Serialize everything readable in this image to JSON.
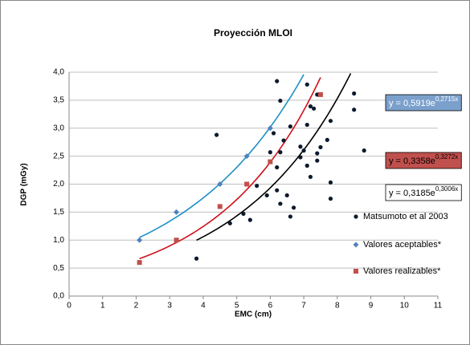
{
  "chart_data": {
    "type": "scatter",
    "title": "Proyección MLOI",
    "x_label": "EMC (cm)",
    "y_label": "DGP  (mGy)",
    "xlim": [
      0,
      11
    ],
    "xticks": [
      0,
      1,
      2,
      3,
      4,
      5,
      6,
      7,
      8,
      9,
      10,
      11
    ],
    "ylim": [
      0,
      4
    ],
    "yticks": [
      {
        "value": 0,
        "label": "0,0"
      },
      {
        "value": 0.5,
        "label": "0,5"
      },
      {
        "value": 1,
        "label": "1,0"
      },
      {
        "value": 1.5,
        "label": "1,5"
      },
      {
        "value": 2,
        "label": "2,0"
      },
      {
        "value": 2.5,
        "label": "2,5"
      },
      {
        "value": 3,
        "label": "3,0"
      },
      {
        "value": 3.5,
        "label": "3,5"
      },
      {
        "value": 4,
        "label": "4,0"
      }
    ],
    "grid": true,
    "series": [
      {
        "name": "Matsumoto et al 2003",
        "color": "#0d1a2e",
        "marker": "circle",
        "x": [
          3.8,
          4.4,
          4.8,
          5.2,
          5.4,
          5.6,
          5.9,
          6.0,
          6.1,
          6.2,
          6.2,
          6.2,
          6.3,
          6.3,
          6.3,
          6.4,
          6.5,
          6.6,
          6.6,
          6.7,
          6.9,
          6.9,
          7.0,
          7.1,
          7.1,
          7.1,
          7.2,
          7.2,
          7.3,
          7.4,
          7.4,
          7.5,
          7.7,
          7.8,
          7.8,
          7.8,
          8.5,
          8.5,
          8.8,
          7.4
        ],
        "values": [
          0.67,
          2.88,
          1.3,
          1.47,
          1.36,
          1.97,
          1.8,
          2.57,
          2.91,
          3.84,
          1.89,
          2.3,
          3.49,
          2.57,
          1.65,
          2.78,
          1.8,
          3.03,
          1.42,
          1.58,
          2.67,
          2.48,
          2.6,
          3.78,
          3.06,
          2.33,
          3.39,
          2.13,
          3.35,
          2.42,
          2.55,
          2.66,
          2.79,
          3.13,
          2.03,
          1.74,
          3.62,
          3.33,
          2.6,
          3.6
        ],
        "trendline": {
          "color": "#000000",
          "coef": 0.3185,
          "rate": 0.3006,
          "x_range": [
            3.8,
            8.4
          ],
          "label_base": "y = 0,3185e",
          "label_exp": "0,3006x",
          "label_fill": "#ffffff",
          "label_text_color": "#000000"
        }
      },
      {
        "name": "Valores aceptables*",
        "color": "#4f81bd",
        "marker": "diamond",
        "x": [
          2.1,
          3.2,
          4.5,
          5.3,
          6.0
        ],
        "values": [
          1.0,
          1.5,
          2.0,
          2.5,
          3.0
        ],
        "trendline": {
          "color": "#1f8fc8",
          "coef": 0.5919,
          "rate": 0.2715,
          "x_range": [
            2.1,
            7.0
          ],
          "label_base": "y = 0,5919e",
          "label_exp": "0,2715x",
          "label_fill": "#7ba0cc",
          "label_text_color": "#ffffff"
        }
      },
      {
        "name": "Valores realizables*",
        "color": "#c0504d",
        "marker": "square",
        "x": [
          2.1,
          3.2,
          4.5,
          5.3,
          6.0,
          7.5
        ],
        "values": [
          0.6,
          1.0,
          1.6,
          2.0,
          2.4,
          3.6
        ],
        "trendline": {
          "color": "#d0101a",
          "coef": 0.3358,
          "rate": 0.3272,
          "x_range": [
            2.1,
            7.5
          ],
          "label_base": "y = 0,3358e",
          "label_exp": "0,3272x",
          "label_fill": "#c0504d",
          "label_text_color": "#000000"
        }
      }
    ]
  }
}
